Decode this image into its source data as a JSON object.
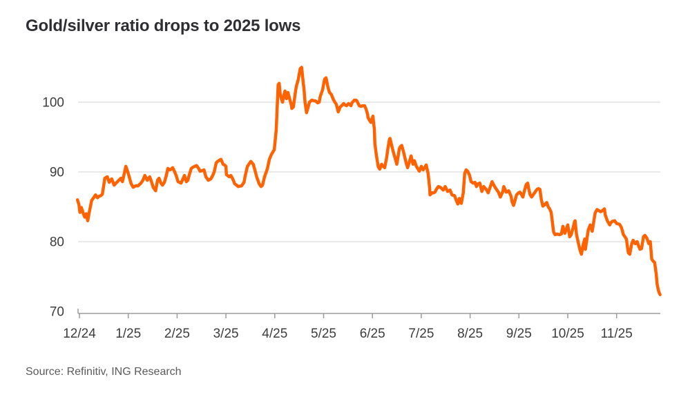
{
  "title": "Gold/silver ratio drops to 2025 lows",
  "source": "Source: Refinitiv, ING Research",
  "colors": {
    "line": "#FF6200",
    "gridline": "#DCDCDC",
    "axis_line": "#9B9B9B",
    "axis_text": "#3C3C3C",
    "title_text": "#2E2E33",
    "source_text": "#5A5A5A",
    "background": "#FFFFFF"
  },
  "chart_data": {
    "type": "line",
    "title": "Gold/silver ratio drops to 2025 lows",
    "series_name": "Gold/silver ratio",
    "x_unit": "months since 12/2024 tick",
    "x_tick_labels": [
      "12/24",
      "1/25",
      "2/25",
      "3/25",
      "4/25",
      "5/25",
      "6/25",
      "7/25",
      "8/25",
      "9/25",
      "10/25",
      "11/25"
    ],
    "y_ticks": [
      70,
      80,
      90,
      100
    ],
    "ylim": [
      70,
      106
    ],
    "xlim": [
      -0.1,
      11.9
    ],
    "grid": "horizontal-only",
    "legend": "none",
    "points": [
      [
        -0.04,
        86.0
      ],
      [
        -0.01,
        85.3
      ],
      [
        0.01,
        84.2
      ],
      [
        0.04,
        84.9
      ],
      [
        0.08,
        84.0
      ],
      [
        0.11,
        83.5
      ],
      [
        0.14,
        84.0
      ],
      [
        0.17,
        83.0
      ],
      [
        0.21,
        84.5
      ],
      [
        0.25,
        85.9
      ],
      [
        0.3,
        86.4
      ],
      [
        0.33,
        86.7
      ],
      [
        0.37,
        86.3
      ],
      [
        0.4,
        86.5
      ],
      [
        0.44,
        86.6
      ],
      [
        0.47,
        86.8
      ],
      [
        0.52,
        89.1
      ],
      [
        0.57,
        89.3
      ],
      [
        0.61,
        88.5
      ],
      [
        0.66,
        89.0
      ],
      [
        0.71,
        88.1
      ],
      [
        0.75,
        88.4
      ],
      [
        0.78,
        88.6
      ],
      [
        0.82,
        88.9
      ],
      [
        0.85,
        89.1
      ],
      [
        0.88,
        88.6
      ],
      [
        0.92,
        89.8
      ],
      [
        0.95,
        90.8
      ],
      [
        0.99,
        90.0
      ],
      [
        1.02,
        89.3
      ],
      [
        1.06,
        88.3
      ],
      [
        1.1,
        87.8
      ],
      [
        1.15,
        88.0
      ],
      [
        1.2,
        88.0
      ],
      [
        1.26,
        88.4
      ],
      [
        1.3,
        88.8
      ],
      [
        1.34,
        89.5
      ],
      [
        1.39,
        88.8
      ],
      [
        1.44,
        89.3
      ],
      [
        1.48,
        88.5
      ],
      [
        1.51,
        87.8
      ],
      [
        1.56,
        87.3
      ],
      [
        1.6,
        88.8
      ],
      [
        1.63,
        89.1
      ],
      [
        1.67,
        88.4
      ],
      [
        1.7,
        88.1
      ],
      [
        1.74,
        88.5
      ],
      [
        1.78,
        89.5
      ],
      [
        1.81,
        90.5
      ],
      [
        1.85,
        90.3
      ],
      [
        1.88,
        90.4
      ],
      [
        1.91,
        90.6
      ],
      [
        1.95,
        90.0
      ],
      [
        1.98,
        89.5
      ],
      [
        2.02,
        88.6
      ],
      [
        2.05,
        88.5
      ],
      [
        2.08,
        88.4
      ],
      [
        2.12,
        89.0
      ],
      [
        2.15,
        89.5
      ],
      [
        2.19,
        88.6
      ],
      [
        2.22,
        88.8
      ],
      [
        2.25,
        89.6
      ],
      [
        2.29,
        90.5
      ],
      [
        2.33,
        90.7
      ],
      [
        2.36,
        90.8
      ],
      [
        2.4,
        90.9
      ],
      [
        2.45,
        90.4
      ],
      [
        2.47,
        90.1
      ],
      [
        2.52,
        90.2
      ],
      [
        2.55,
        90.3
      ],
      [
        2.59,
        89.3
      ],
      [
        2.62,
        89.0
      ],
      [
        2.64,
        88.8
      ],
      [
        2.69,
        89.0
      ],
      [
        2.73,
        89.5
      ],
      [
        2.76,
        90.0
      ],
      [
        2.8,
        91.3
      ],
      [
        2.83,
        91.5
      ],
      [
        2.87,
        91.7
      ],
      [
        2.9,
        91.8
      ],
      [
        2.94,
        91.1
      ],
      [
        2.97,
        91.0
      ],
      [
        3.0,
        90.8
      ],
      [
        3.01,
        89.6
      ],
      [
        3.07,
        89.3
      ],
      [
        3.1,
        89.5
      ],
      [
        3.14,
        89.0
      ],
      [
        3.18,
        88.3
      ],
      [
        3.22,
        88.1
      ],
      [
        3.25,
        87.9
      ],
      [
        3.32,
        88.0
      ],
      [
        3.37,
        88.5
      ],
      [
        3.39,
        89.3
      ],
      [
        3.44,
        90.8
      ],
      [
        3.51,
        91.5
      ],
      [
        3.56,
        91.1
      ],
      [
        3.6,
        90.1
      ],
      [
        3.63,
        89.3
      ],
      [
        3.68,
        88.3
      ],
      [
        3.72,
        87.9
      ],
      [
        3.75,
        88.1
      ],
      [
        3.79,
        89.3
      ],
      [
        3.85,
        90.5
      ],
      [
        3.89,
        91.8
      ],
      [
        3.93,
        92.5
      ],
      [
        3.99,
        93.2
      ],
      [
        4.03,
        96.0
      ],
      [
        4.07,
        102.5
      ],
      [
        4.09,
        102.7
      ],
      [
        4.11,
        101.2
      ],
      [
        4.14,
        100.4
      ],
      [
        4.16,
        100.0
      ],
      [
        4.18,
        100.8
      ],
      [
        4.21,
        101.6
      ],
      [
        4.24,
        100.5
      ],
      [
        4.27,
        101.4
      ],
      [
        4.3,
        100.6
      ],
      [
        4.34,
        99.6
      ],
      [
        4.35,
        99.1
      ],
      [
        4.38,
        99.3
      ],
      [
        4.43,
        101.8
      ],
      [
        4.45,
        102.5
      ],
      [
        4.48,
        103.2
      ],
      [
        4.52,
        104.8
      ],
      [
        4.55,
        105.0
      ],
      [
        4.58,
        103.0
      ],
      [
        4.6,
        101.8
      ],
      [
        4.62,
        100.0
      ],
      [
        4.65,
        98.5
      ],
      [
        4.68,
        99.2
      ],
      [
        4.71,
        100.0
      ],
      [
        4.76,
        100.3
      ],
      [
        4.81,
        100.2
      ],
      [
        4.83,
        100.2
      ],
      [
        4.88,
        99.9
      ],
      [
        4.91,
        100.0
      ],
      [
        4.93,
        100.8
      ],
      [
        4.98,
        101.8
      ],
      [
        5.02,
        103.3
      ],
      [
        5.05,
        103.5
      ],
      [
        5.09,
        102.1
      ],
      [
        5.12,
        101.4
      ],
      [
        5.16,
        101.1
      ],
      [
        5.2,
        100.4
      ],
      [
        5.23,
        100.0
      ],
      [
        5.26,
        99.7
      ],
      [
        5.3,
        98.6
      ],
      [
        5.34,
        99.3
      ],
      [
        5.37,
        99.5
      ],
      [
        5.41,
        99.8
      ],
      [
        5.44,
        99.6
      ],
      [
        5.47,
        99.5
      ],
      [
        5.51,
        99.8
      ],
      [
        5.56,
        99.5
      ],
      [
        5.58,
        99.9
      ],
      [
        5.63,
        100.3
      ],
      [
        5.66,
        100.3
      ],
      [
        5.68,
        100.2
      ],
      [
        5.73,
        99.5
      ],
      [
        5.77,
        99.4
      ],
      [
        5.8,
        99.5
      ],
      [
        5.84,
        99.5
      ],
      [
        5.87,
        99.0
      ],
      [
        5.9,
        98.3
      ],
      [
        5.91,
        97.8
      ],
      [
        5.94,
        97.4
      ],
      [
        5.97,
        97.1
      ],
      [
        6.01,
        98.0
      ],
      [
        6.04,
        96.1
      ],
      [
        6.05,
        94.1
      ],
      [
        6.08,
        92.4
      ],
      [
        6.12,
        90.7
      ],
      [
        6.15,
        90.4
      ],
      [
        6.19,
        91.1
      ],
      [
        6.22,
        90.8
      ],
      [
        6.25,
        90.6
      ],
      [
        6.29,
        92.0
      ],
      [
        6.32,
        93.5
      ],
      [
        6.35,
        94.7
      ],
      [
        6.36,
        94.8
      ],
      [
        6.4,
        93.6
      ],
      [
        6.43,
        92.8
      ],
      [
        6.46,
        92.1
      ],
      [
        6.5,
        91.1
      ],
      [
        6.55,
        93.3
      ],
      [
        6.57,
        93.6
      ],
      [
        6.6,
        93.8
      ],
      [
        6.64,
        92.8
      ],
      [
        6.69,
        91.3
      ],
      [
        6.72,
        90.6
      ],
      [
        6.76,
        91.5
      ],
      [
        6.79,
        92.3
      ],
      [
        6.83,
        91.1
      ],
      [
        6.86,
        91.6
      ],
      [
        6.9,
        90.8
      ],
      [
        6.96,
        90.1
      ],
      [
        7.0,
        90.8
      ],
      [
        7.04,
        90.3
      ],
      [
        7.1,
        91.0
      ],
      [
        7.14,
        89.8
      ],
      [
        7.17,
        87.8
      ],
      [
        7.18,
        86.7
      ],
      [
        7.22,
        87.0
      ],
      [
        7.25,
        87.0
      ],
      [
        7.28,
        87.1
      ],
      [
        7.31,
        87.5
      ],
      [
        7.35,
        87.9
      ],
      [
        7.39,
        87.8
      ],
      [
        7.45,
        87.4
      ],
      [
        7.49,
        87.9
      ],
      [
        7.54,
        87.2
      ],
      [
        7.59,
        87.4
      ],
      [
        7.63,
        86.7
      ],
      [
        7.68,
        86.6
      ],
      [
        7.73,
        85.7
      ],
      [
        7.75,
        85.4
      ],
      [
        7.78,
        86.2
      ],
      [
        7.82,
        85.5
      ],
      [
        7.86,
        87.0
      ],
      [
        7.89,
        89.8
      ],
      [
        7.92,
        90.3
      ],
      [
        7.95,
        90.1
      ],
      [
        7.99,
        89.5
      ],
      [
        8.02,
        88.6
      ],
      [
        8.06,
        88.4
      ],
      [
        8.1,
        88.5
      ],
      [
        8.13,
        87.9
      ],
      [
        8.16,
        88.3
      ],
      [
        8.2,
        88.4
      ],
      [
        8.24,
        87.2
      ],
      [
        8.28,
        87.9
      ],
      [
        8.33,
        87.5
      ],
      [
        8.37,
        87.0
      ],
      [
        8.41,
        87.8
      ],
      [
        8.45,
        88.6
      ],
      [
        8.48,
        88.2
      ],
      [
        8.51,
        87.8
      ],
      [
        8.55,
        87.4
      ],
      [
        8.58,
        87.1
      ],
      [
        8.62,
        86.4
      ],
      [
        8.67,
        87.2
      ],
      [
        8.69,
        87.9
      ],
      [
        8.74,
        87.1
      ],
      [
        8.77,
        87.2
      ],
      [
        8.79,
        87.3
      ],
      [
        8.84,
        86.5
      ],
      [
        8.86,
        85.7
      ],
      [
        8.89,
        85.2
      ],
      [
        8.92,
        85.9
      ],
      [
        8.95,
        86.7
      ],
      [
        8.99,
        87.0
      ],
      [
        9.02,
        87.1
      ],
      [
        9.05,
        86.8
      ],
      [
        9.08,
        86.4
      ],
      [
        9.12,
        87.5
      ],
      [
        9.15,
        88.2
      ],
      [
        9.18,
        88.4
      ],
      [
        9.2,
        87.6
      ],
      [
        9.23,
        86.7
      ],
      [
        9.26,
        86.4
      ],
      [
        9.3,
        86.8
      ],
      [
        9.34,
        87.2
      ],
      [
        9.37,
        87.5
      ],
      [
        9.4,
        87.6
      ],
      [
        9.43,
        87.5
      ],
      [
        9.46,
        86.0
      ],
      [
        9.49,
        85.1
      ],
      [
        9.51,
        85.2
      ],
      [
        9.54,
        85.4
      ],
      [
        9.57,
        85.6
      ],
      [
        9.6,
        85.0
      ],
      [
        9.63,
        84.7
      ],
      [
        9.66,
        84.2
      ],
      [
        9.69,
        82.5
      ],
      [
        9.71,
        81.4
      ],
      [
        9.74,
        81.0
      ],
      [
        9.78,
        81.1
      ],
      [
        9.83,
        81.0
      ],
      [
        9.87,
        81.1
      ],
      [
        9.9,
        82.2
      ],
      [
        9.94,
        81.2
      ],
      [
        9.97,
        81.8
      ],
      [
        10.0,
        82.4
      ],
      [
        10.04,
        80.7
      ],
      [
        10.07,
        81.0
      ],
      [
        10.11,
        82.0
      ],
      [
        10.14,
        82.9
      ],
      [
        10.15,
        83.0
      ],
      [
        10.18,
        81.0
      ],
      [
        10.22,
        79.7
      ],
      [
        10.25,
        78.8
      ],
      [
        10.28,
        78.2
      ],
      [
        10.32,
        79.7
      ],
      [
        10.35,
        80.4
      ],
      [
        10.36,
        78.9
      ],
      [
        10.39,
        80.3
      ],
      [
        10.42,
        81.7
      ],
      [
        10.46,
        82.4
      ],
      [
        10.5,
        81.5
      ],
      [
        10.53,
        82.8
      ],
      [
        10.56,
        84.1
      ],
      [
        10.6,
        84.6
      ],
      [
        10.65,
        84.4
      ],
      [
        10.67,
        84.3
      ],
      [
        10.7,
        84.4
      ],
      [
        10.75,
        84.7
      ],
      [
        10.77,
        83.8
      ],
      [
        10.81,
        83.0
      ],
      [
        10.86,
        82.4
      ],
      [
        10.88,
        82.7
      ],
      [
        10.91,
        82.9
      ],
      [
        10.96,
        83.0
      ],
      [
        11.0,
        82.6
      ],
      [
        11.06,
        82.5
      ],
      [
        11.1,
        82.0
      ],
      [
        11.14,
        81.0
      ],
      [
        11.2,
        80.4
      ],
      [
        11.24,
        78.4
      ],
      [
        11.27,
        78.2
      ],
      [
        11.31,
        79.7
      ],
      [
        11.34,
        80.2
      ],
      [
        11.38,
        79.7
      ],
      [
        11.42,
        80.0
      ],
      [
        11.45,
        79.4
      ],
      [
        11.48,
        78.9
      ],
      [
        11.51,
        79.0
      ],
      [
        11.55,
        80.7
      ],
      [
        11.58,
        80.9
      ],
      [
        11.62,
        80.5
      ],
      [
        11.66,
        79.7
      ],
      [
        11.69,
        80.0
      ],
      [
        11.72,
        77.5
      ],
      [
        11.75,
        77.2
      ],
      [
        11.78,
        77.0
      ],
      [
        11.81,
        75.4
      ],
      [
        11.83,
        73.9
      ],
      [
        11.86,
        72.9
      ],
      [
        11.89,
        72.4
      ]
    ]
  }
}
